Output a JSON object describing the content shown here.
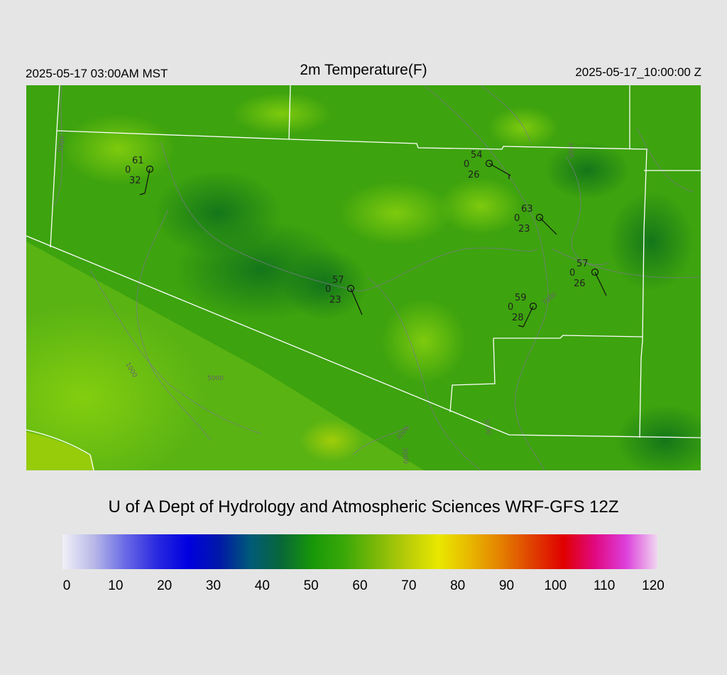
{
  "header": {
    "local_time": "2025-05-17 03:00AM MST",
    "title": "2m Temperature(F)",
    "valid_time": "2025-05-17_10:00:00 Z"
  },
  "map": {
    "region": "Arizona",
    "field": "2m temperature shaded, terrain contours (gray), state/border outlines (white)",
    "contour_labels": [
      "1000",
      "3000",
      "5000",
      "7000"
    ],
    "stations": [
      {
        "temp": "61",
        "mid": "0",
        "dew": "32"
      },
      {
        "temp": "54",
        "mid": "0",
        "dew": "26"
      },
      {
        "temp": "63",
        "mid": "0",
        "dew": "23"
      },
      {
        "temp": "57",
        "mid": "0",
        "dew": "26"
      },
      {
        "temp": "57",
        "mid": "0",
        "dew": "23"
      },
      {
        "temp": "59",
        "mid": "0",
        "dew": "28"
      }
    ]
  },
  "footer": {
    "credit": "U of A Dept of Hydrology and Atmospheric Sciences WRF-GFS 12Z"
  },
  "colorbar": {
    "min": 0,
    "max": 120,
    "ticks": [
      "0",
      "10",
      "20",
      "30",
      "40",
      "50",
      "60",
      "70",
      "80",
      "90",
      "100",
      "110",
      "120"
    ],
    "colors": [
      "#f0f0f8",
      "#b8b8e8",
      "#6a6ae6",
      "#2a2ae0",
      "#0000e0",
      "#0018a8",
      "#005a78",
      "#086838",
      "#189808",
      "#3aa808",
      "#7ab808",
      "#b8cc08",
      "#e8e800",
      "#e8b800",
      "#e48000",
      "#e04000",
      "#e00000",
      "#e00880",
      "#dc40dc",
      "#f0d8f0"
    ]
  }
}
